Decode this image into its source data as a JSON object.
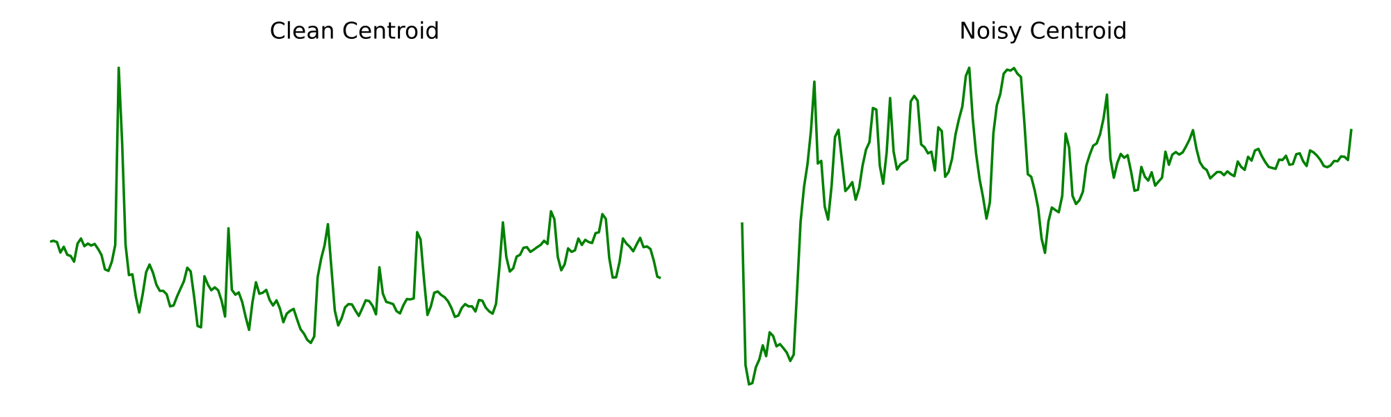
{
  "chart_data": [
    {
      "type": "line",
      "title": "Clean Centroid",
      "xlabel": "",
      "ylabel": "",
      "grid": false,
      "axes_visible": false,
      "ylim": [
        0,
        1
      ],
      "series": [
        {
          "color": "#008000",
          "values": [
            0.45,
            0.453,
            0.449,
            0.416,
            0.434,
            0.409,
            0.405,
            0.387,
            0.444,
            0.46,
            0.436,
            0.444,
            0.438,
            0.443,
            0.427,
            0.408,
            0.363,
            0.358,
            0.387,
            0.44,
            0.999,
            0.764,
            0.441,
            0.345,
            0.347,
            0.277,
            0.227,
            0.285,
            0.354,
            0.378,
            0.352,
            0.314,
            0.295,
            0.295,
            0.284,
            0.246,
            0.249,
            0.277,
            0.301,
            0.325,
            0.368,
            0.356,
            0.275,
            0.184,
            0.18,
            0.341,
            0.315,
            0.297,
            0.306,
            0.297,
            0.264,
            0.214,
            0.492,
            0.298,
            0.283,
            0.29,
            0.26,
            0.213,
            0.172,
            0.259,
            0.322,
            0.286,
            0.289,
            0.298,
            0.266,
            0.249,
            0.265,
            0.239,
            0.196,
            0.223,
            0.232,
            0.238,
            0.205,
            0.174,
            0.16,
            0.14,
            0.131,
            0.151,
            0.338,
            0.396,
            0.438,
            0.505,
            0.367,
            0.233,
            0.186,
            0.209,
            0.243,
            0.253,
            0.252,
            0.233,
            0.216,
            0.24,
            0.265,
            0.263,
            0.248,
            0.221,
            0.369,
            0.286,
            0.26,
            0.257,
            0.253,
            0.231,
            0.224,
            0.25,
            0.269,
            0.268,
            0.271,
            0.48,
            0.457,
            0.33,
            0.219,
            0.246,
            0.289,
            0.293,
            0.282,
            0.275,
            0.262,
            0.241,
            0.213,
            0.217,
            0.241,
            0.253,
            0.246,
            0.246,
            0.23,
            0.266,
            0.264,
            0.242,
            0.23,
            0.223,
            0.254,
            0.373,
            0.511,
            0.402,
            0.356,
            0.366,
            0.403,
            0.409,
            0.431,
            0.433,
            0.418,
            0.425,
            0.433,
            0.44,
            0.453,
            0.443,
            0.546,
            0.521,
            0.402,
            0.36,
            0.379,
            0.429,
            0.418,
            0.423,
            0.46,
            0.44,
            0.456,
            0.449,
            0.446,
            0.477,
            0.48,
            0.537,
            0.522,
            0.399,
            0.337,
            0.338,
            0.386,
            0.46,
            0.444,
            0.434,
            0.42,
            0.442,
            0.462,
            0.433,
            0.435,
            0.427,
            0.39,
            0.34,
            0.335
          ]
        }
      ]
    },
    {
      "type": "line",
      "title": "Noisy Centroid",
      "xlabel": "",
      "ylabel": "",
      "grid": false,
      "axes_visible": false,
      "ylim": [
        0,
        1
      ],
      "series": [
        {
          "color": "#008000",
          "values": [
            0.511,
            0.061,
            0.0,
            0.004,
            0.054,
            0.078,
            0.123,
            0.089,
            0.164,
            0.153,
            0.12,
            0.127,
            0.114,
            0.1,
            0.074,
            0.094,
            0.301,
            0.513,
            0.624,
            0.694,
            0.8,
            0.955,
            0.697,
            0.705,
            0.561,
            0.52,
            0.627,
            0.781,
            0.803,
            0.707,
            0.61,
            0.622,
            0.638,
            0.583,
            0.619,
            0.69,
            0.741,
            0.764,
            0.872,
            0.867,
            0.69,
            0.633,
            0.733,
            0.903,
            0.735,
            0.678,
            0.694,
            0.701,
            0.709,
            0.893,
            0.91,
            0.895,
            0.757,
            0.748,
            0.729,
            0.734,
            0.675,
            0.811,
            0.799,
            0.655,
            0.67,
            0.712,
            0.788,
            0.837,
            0.877,
            0.973,
            0.999,
            0.839,
            0.727,
            0.647,
            0.591,
            0.523,
            0.575,
            0.792,
            0.88,
            0.916,
            0.98,
            0.993,
            0.99,
            0.998,
            0.98,
            0.97,
            0.828,
            0.663,
            0.655,
            0.612,
            0.558,
            0.46,
            0.415,
            0.514,
            0.558,
            0.55,
            0.543,
            0.595,
            0.791,
            0.747,
            0.595,
            0.569,
            0.581,
            0.608,
            0.69,
            0.725,
            0.753,
            0.76,
            0.789,
            0.839,
            0.914,
            0.712,
            0.652,
            0.699,
            0.727,
            0.715,
            0.723,
            0.671,
            0.611,
            0.614,
            0.686,
            0.655,
            0.643,
            0.669,
            0.627,
            0.64,
            0.652,
            0.734,
            0.693,
            0.725,
            0.733,
            0.725,
            0.732,
            0.751,
            0.773,
            0.802,
            0.743,
            0.701,
            0.684,
            0.676,
            0.65,
            0.66,
            0.67,
            0.67,
            0.66,
            0.672,
            0.663,
            0.657,
            0.703,
            0.686,
            0.677,
            0.718,
            0.706,
            0.738,
            0.743,
            0.72,
            0.701,
            0.686,
            0.683,
            0.68,
            0.709,
            0.708,
            0.721,
            0.693,
            0.695,
            0.726,
            0.729,
            0.704,
            0.689,
            0.738,
            0.732,
            0.722,
            0.708,
            0.689,
            0.685,
            0.691,
            0.705,
            0.704,
            0.719,
            0.718,
            0.708,
            0.806
          ]
        }
      ]
    }
  ]
}
